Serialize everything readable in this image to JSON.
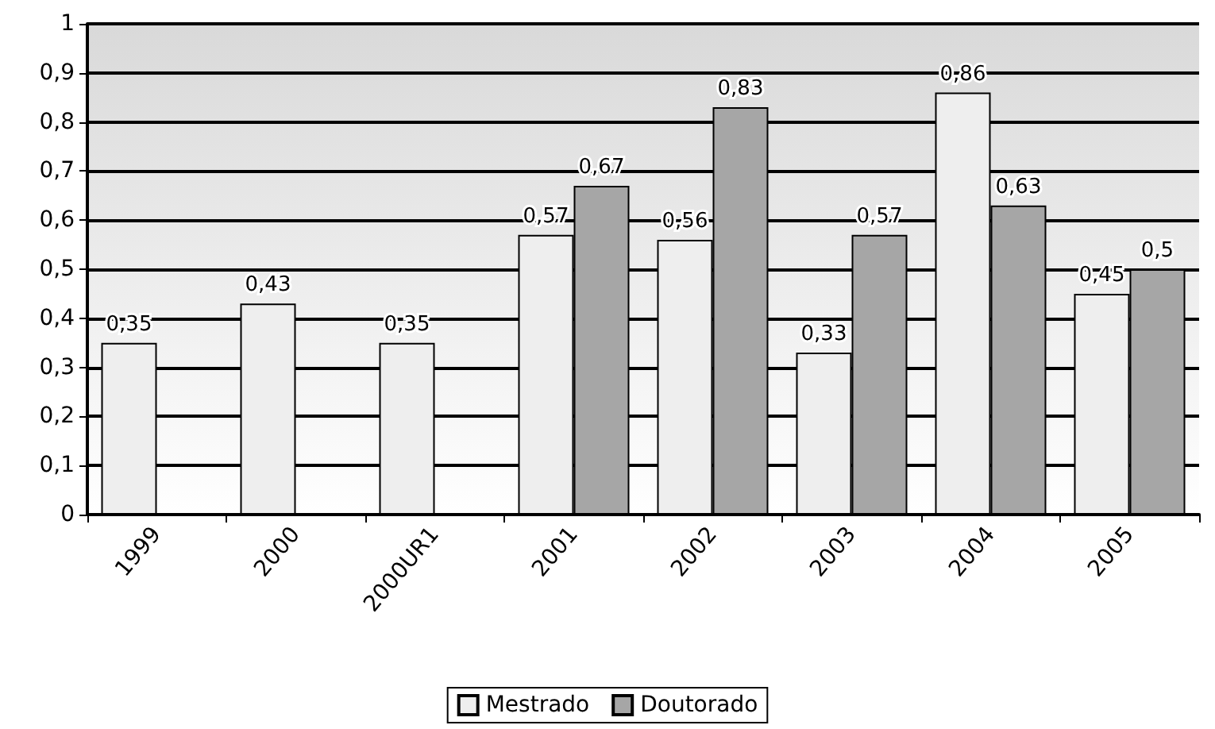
{
  "chart_data": {
    "type": "bar",
    "categories": [
      "1999",
      "2000",
      "2000UR1",
      "2001",
      "2002",
      "2003",
      "2004",
      "2005"
    ],
    "series": [
      {
        "name": "Mestrado",
        "color": "#eeeeee",
        "values": [
          0.35,
          0.43,
          0.35,
          0.57,
          0.56,
          0.33,
          0.86,
          0.45
        ],
        "value_labels": [
          "0,35",
          "0,43",
          "0,35",
          "0,57",
          "0,56",
          "0,33",
          "0,86",
          "0,45"
        ]
      },
      {
        "name": "Doutorado",
        "color": "#a6a6a6",
        "values": [
          null,
          null,
          null,
          0.67,
          0.83,
          0.57,
          0.63,
          0.5
        ],
        "value_labels": [
          null,
          null,
          null,
          "0,67",
          "0,83",
          "0,57",
          "0,63",
          "0,5"
        ]
      }
    ],
    "ylim": [
      0,
      1
    ],
    "yticks": [
      {
        "value": 0,
        "label": "0"
      },
      {
        "value": 0.1,
        "label": "0,1"
      },
      {
        "value": 0.2,
        "label": "0,2"
      },
      {
        "value": 0.3,
        "label": "0,3"
      },
      {
        "value": 0.4,
        "label": "0,4"
      },
      {
        "value": 0.5,
        "label": "0,5"
      },
      {
        "value": 0.6,
        "label": "0,6"
      },
      {
        "value": 0.7,
        "label": "0,7"
      },
      {
        "value": 0.8,
        "label": "0,8"
      },
      {
        "value": 0.9,
        "label": "0,9"
      },
      {
        "value": 1,
        "label": "1"
      }
    ],
    "grid": "y",
    "legend": "bottom"
  }
}
